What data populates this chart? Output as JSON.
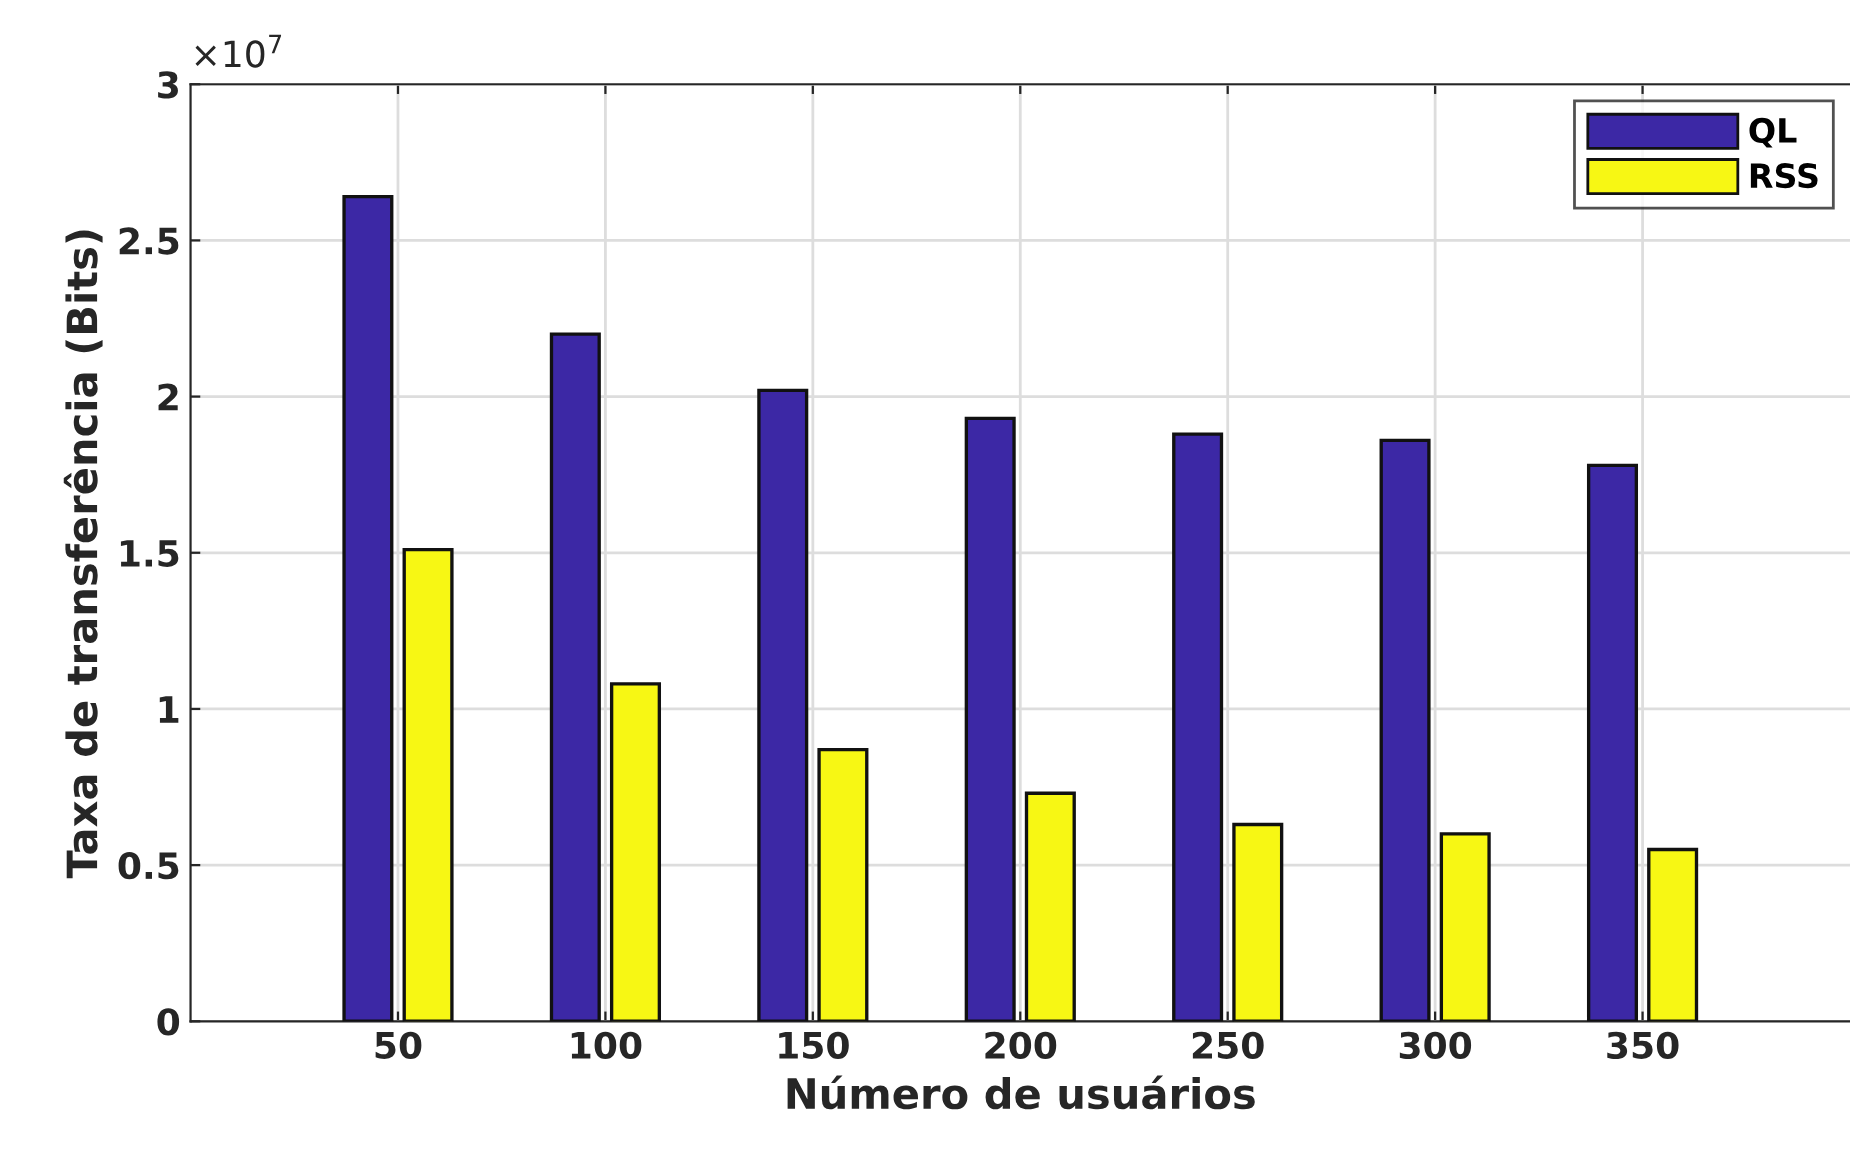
{
  "chart_data": {
    "type": "bar",
    "xlabel": "Número de usuários",
    "ylabel": "Taxa de transferência (Bits)",
    "x": [
      50,
      100,
      150,
      200,
      250,
      300,
      350
    ],
    "xlim": [
      0,
      400
    ],
    "xticks": [
      50,
      100,
      150,
      200,
      250,
      300,
      350
    ],
    "ylim": [
      0,
      3
    ],
    "yticks": [
      0,
      0.5,
      1,
      1.5,
      2,
      2.5,
      3
    ],
    "series": [
      {
        "name": "QL",
        "color": "#3c28a5",
        "values": [
          2.64,
          2.2,
          2.02,
          1.93,
          1.88,
          1.86,
          1.78
        ]
      },
      {
        "name": "RSS",
        "color": "#f7f714",
        "values": [
          1.51,
          1.08,
          0.87,
          0.73,
          0.63,
          0.6,
          0.55
        ]
      }
    ],
    "annotations": [
      "×10$^{7}$"
    ],
    "grid": true,
    "legend": "top right"
  }
}
